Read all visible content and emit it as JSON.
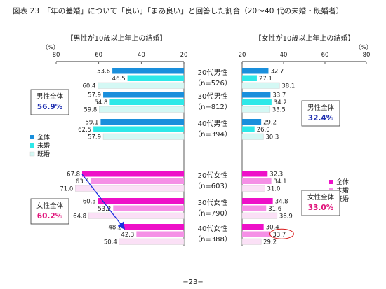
{
  "page": {
    "title": "図表 23　「年の差婚」について「良い」「まあ良い」と回答した割合（20～40 代の未婚・既婚者）",
    "page_number": "−23−"
  },
  "chart_data": {
    "type": "bar",
    "left_panel": {
      "title": "【男性が10歳以上年上の結婚】",
      "axis_unit": "（%）",
      "xlim": [
        20,
        80
      ],
      "direction": "reversed",
      "ticks": [
        80,
        60,
        40,
        20
      ]
    },
    "right_panel": {
      "title": "【女性が10歳以上年上の結婚】",
      "axis_unit": "（%）",
      "xlim": [
        20,
        80
      ],
      "direction": "normal",
      "ticks": [
        20,
        40,
        60,
        80
      ]
    },
    "male_group": {
      "rows": [
        {
          "label": "20代男性",
          "n": "（n=526）",
          "left": [
            53.6,
            46.5,
            60.4
          ],
          "right": [
            32.7,
            27.1,
            38.1
          ]
        },
        {
          "label": "30代男性",
          "n": "（n=812）",
          "left": [
            57.9,
            54.8,
            59.8
          ],
          "right": [
            33.7,
            34.2,
            33.5
          ]
        },
        {
          "label": "40代男性",
          "n": "（n=394）",
          "left": [
            59.1,
            62.5,
            57.9
          ],
          "right": [
            29.2,
            26.0,
            30.3
          ]
        }
      ],
      "series": [
        "全体",
        "未婚",
        "既婚"
      ],
      "colors": [
        "#1a8fdc",
        "#2de8e8",
        "#d4f8f4"
      ],
      "left_total_label": "男性全体",
      "left_total_value": "56.9%",
      "right_total_label": "男性全体",
      "right_total_value": "32.4%",
      "total_value_color": "#1f2fb0"
    },
    "female_group": {
      "rows": [
        {
          "label": "20代女性",
          "n": "（n=603）",
          "left": [
            67.8,
            63.6,
            71.0
          ],
          "right": [
            32.3,
            34.1,
            31.0
          ]
        },
        {
          "label": "30代女性",
          "n": "（n=790）",
          "left": [
            60.3,
            53.2,
            64.8
          ],
          "right": [
            34.8,
            31.6,
            36.9
          ]
        },
        {
          "label": "40代女性",
          "n": "（n=388）",
          "left": [
            48.2,
            42.3,
            50.4
          ],
          "right": [
            30.4,
            33.7,
            29.2
          ]
        }
      ],
      "series": [
        "全体",
        "未婚",
        "既婚"
      ],
      "colors": [
        "#ee10c8",
        "#f590e6",
        "#fbe0f6"
      ],
      "left_total_label": "女性全体",
      "left_total_value": "60.2%",
      "right_total_label": "女性全体",
      "right_total_value": "33.0%",
      "total_value_color": "#e0127a"
    },
    "annotations": {
      "arrow_from": "20代女性 全体 67.8",
      "arrow_to": "40代女性 全体 48.2",
      "arrow_color": "#1a2ee0",
      "circled_value": "40代女性 未婚 33.7",
      "circle_color": "#d81818"
    }
  }
}
